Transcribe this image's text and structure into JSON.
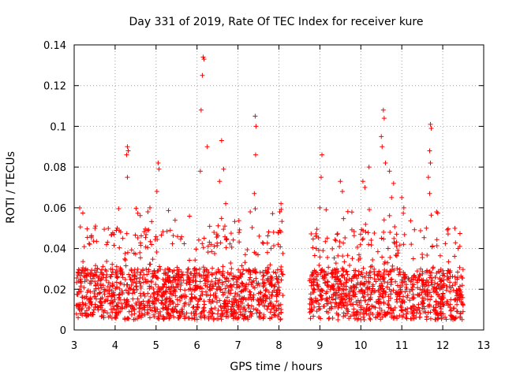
{
  "chart_data": {
    "type": "scatter",
    "title": "Day 331 of 2019, Rate Of TEC Index for receiver kure",
    "xlabel": "GPS time / hours",
    "ylabel": "ROTI / TECUs",
    "xlim": [
      3,
      13
    ],
    "ylim": [
      0,
      0.14
    ],
    "x_ticks": [
      3,
      4,
      5,
      6,
      7,
      8,
      9,
      10,
      11,
      12,
      13
    ],
    "y_ticks": [
      0,
      0.02,
      0.04,
      0.06,
      0.08,
      0.1,
      0.12,
      0.14
    ],
    "x_tick_labels": [
      "3",
      "4",
      "5",
      "6",
      "7",
      "8",
      "9",
      "10",
      "11",
      "12",
      "13"
    ],
    "y_tick_labels": [
      "0",
      "0.02",
      "0.04",
      "0.06",
      "0.08",
      "0.1",
      "0.12",
      "0.14"
    ],
    "grid": true,
    "marker": "+",
    "color": "#ff0000",
    "series": [
      {
        "name": "ROTI",
        "segments": [
          {
            "x_start": 3.05,
            "x_end": 8.1
          },
          {
            "x_start": 8.75,
            "x_end": 12.5
          }
        ],
        "baseline_range": [
          0.005,
          0.03
        ],
        "notable_points": [
          {
            "x": 4.3,
            "y": 0.09
          },
          {
            "x": 4.32,
            "y": 0.088
          },
          {
            "x": 4.28,
            "y": 0.086
          },
          {
            "x": 4.3,
            "y": 0.075
          },
          {
            "x": 4.05,
            "y": 0.05
          },
          {
            "x": 4.1,
            "y": 0.049
          },
          {
            "x": 5.05,
            "y": 0.082
          },
          {
            "x": 5.07,
            "y": 0.079
          },
          {
            "x": 5.02,
            "y": 0.068
          },
          {
            "x": 4.85,
            "y": 0.06
          },
          {
            "x": 4.8,
            "y": 0.058
          },
          {
            "x": 6.15,
            "y": 0.134
          },
          {
            "x": 6.17,
            "y": 0.133
          },
          {
            "x": 6.13,
            "y": 0.125
          },
          {
            "x": 6.1,
            "y": 0.108
          },
          {
            "x": 6.08,
            "y": 0.078
          },
          {
            "x": 6.25,
            "y": 0.09
          },
          {
            "x": 6.6,
            "y": 0.093
          },
          {
            "x": 6.65,
            "y": 0.079
          },
          {
            "x": 6.55,
            "y": 0.073
          },
          {
            "x": 6.7,
            "y": 0.062
          },
          {
            "x": 6.68,
            "y": 0.051
          },
          {
            "x": 7.42,
            "y": 0.105
          },
          {
            "x": 7.44,
            "y": 0.1
          },
          {
            "x": 7.43,
            "y": 0.086
          },
          {
            "x": 7.4,
            "y": 0.067
          },
          {
            "x": 7.3,
            "y": 0.058
          },
          {
            "x": 8.05,
            "y": 0.062
          },
          {
            "x": 8.02,
            "y": 0.058
          },
          {
            "x": 9.05,
            "y": 0.086
          },
          {
            "x": 9.03,
            "y": 0.075
          },
          {
            "x": 9.0,
            "y": 0.06
          },
          {
            "x": 9.5,
            "y": 0.073
          },
          {
            "x": 9.55,
            "y": 0.068
          },
          {
            "x": 10.05,
            "y": 0.073
          },
          {
            "x": 10.1,
            "y": 0.07
          },
          {
            "x": 10.2,
            "y": 0.08
          },
          {
            "x": 10.55,
            "y": 0.108
          },
          {
            "x": 10.57,
            "y": 0.104
          },
          {
            "x": 10.5,
            "y": 0.095
          },
          {
            "x": 10.52,
            "y": 0.09
          },
          {
            "x": 10.6,
            "y": 0.082
          },
          {
            "x": 10.7,
            "y": 0.078
          },
          {
            "x": 10.8,
            "y": 0.072
          },
          {
            "x": 10.75,
            "y": 0.065
          },
          {
            "x": 11.0,
            "y": 0.065
          },
          {
            "x": 11.05,
            "y": 0.06
          },
          {
            "x": 11.7,
            "y": 0.101
          },
          {
            "x": 11.72,
            "y": 0.099
          },
          {
            "x": 11.68,
            "y": 0.088
          },
          {
            "x": 11.7,
            "y": 0.082
          },
          {
            "x": 11.65,
            "y": 0.075
          },
          {
            "x": 11.68,
            "y": 0.067
          },
          {
            "x": 11.85,
            "y": 0.058
          },
          {
            "x": 11.6,
            "y": 0.05
          }
        ]
      }
    ]
  }
}
